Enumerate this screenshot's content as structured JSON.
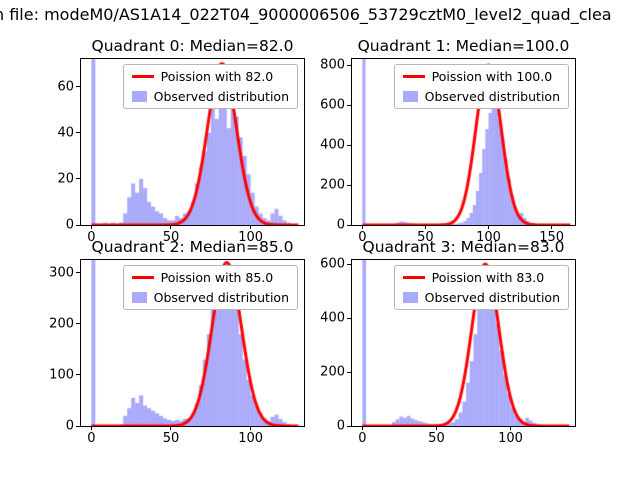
{
  "figure": {
    "title": "n file: modeM0/AS1A14_022T04_9000006506_53729cztM0_level2_quad_clea"
  },
  "colors": {
    "hist": "rgba(100,100,245,0.55)",
    "curve": "#ff0000"
  },
  "chart_data": [
    {
      "type": "bar",
      "title": "Quadrant 0: Median=82.0",
      "legend": [
        "Poission with 82.0",
        "Observed distribution"
      ],
      "xlim": [
        -6.5,
        133.5
      ],
      "ylim": [
        0,
        72
      ],
      "xticks": [
        0,
        50,
        100
      ],
      "yticks": [
        0,
        20,
        40,
        60
      ],
      "bin_start": 0,
      "bin_width": 2.5,
      "counts": [
        72,
        0,
        0,
        1,
        0,
        1,
        0,
        1,
        5,
        12,
        18,
        14,
        20,
        16,
        10,
        8,
        6,
        5,
        3,
        2,
        2,
        4,
        3,
        5,
        6,
        10,
        18,
        25,
        32,
        40,
        52,
        46,
        60,
        55,
        42,
        63,
        47,
        38,
        30,
        22,
        14,
        8,
        5,
        3,
        2,
        5,
        7,
        4,
        2,
        1,
        0,
        0
      ],
      "curve": {
        "label": "Poission with 82.0",
        "mu": 82,
        "amplitude": 70,
        "x_range": [
          0,
          130
        ]
      }
    },
    {
      "type": "bar",
      "title": "Quadrant 1: Median=100.0",
      "legend": [
        "Poission with 100.0",
        "Observed distribution"
      ],
      "xlim": [
        -8.2,
        168.5
      ],
      "ylim": [
        0,
        830
      ],
      "xticks": [
        0,
        50,
        100,
        150
      ],
      "yticks": [
        0,
        200,
        400,
        600,
        800
      ],
      "bin_start": 0,
      "bin_width": 2.5,
      "counts": [
        830,
        0,
        1,
        0,
        1,
        0,
        1,
        2,
        1,
        2,
        8,
        14,
        18,
        15,
        12,
        9,
        7,
        5,
        4,
        3,
        3,
        2,
        2,
        3,
        2,
        3,
        4,
        3,
        5,
        6,
        8,
        12,
        20,
        35,
        60,
        100,
        170,
        260,
        380,
        480,
        560,
        610,
        590,
        530,
        430,
        330,
        230,
        150,
        90,
        55,
        60,
        35,
        20,
        12,
        8,
        5,
        3,
        2,
        1,
        1,
        0,
        1,
        0,
        0,
        0,
        0
      ],
      "curve": {
        "label": "Poission with 100.0",
        "mu": 100,
        "amplitude": 800,
        "x_range": [
          0,
          165
        ]
      }
    },
    {
      "type": "bar",
      "title": "Quadrant 2: Median=85.0",
      "legend": [
        "Poission with 85.0",
        "Observed distribution"
      ],
      "xlim": [
        -6.5,
        133.5
      ],
      "ylim": [
        0,
        325
      ],
      "xticks": [
        0,
        50,
        100
      ],
      "yticks": [
        0,
        100,
        200,
        300
      ],
      "bin_start": 0,
      "bin_width": 2.5,
      "counts": [
        325,
        1,
        2,
        1,
        2,
        1,
        2,
        3,
        20,
        35,
        55,
        45,
        60,
        40,
        35,
        30,
        25,
        20,
        15,
        12,
        10,
        12,
        10,
        14,
        15,
        25,
        45,
        80,
        130,
        180,
        230,
        270,
        300,
        240,
        295,
        285,
        230,
        180,
        130,
        90,
        60,
        40,
        25,
        15,
        10,
        18,
        22,
        14,
        8,
        4,
        2,
        1
      ],
      "curve": {
        "label": "Poission with 85.0",
        "mu": 85,
        "amplitude": 320,
        "x_range": [
          0,
          130
        ]
      }
    },
    {
      "type": "bar",
      "title": "Quadrant 3: Median=83.0",
      "legend": [
        "Poission with 83.0",
        "Observed distribution"
      ],
      "xlim": [
        -7,
        143.5
      ],
      "ylim": [
        0,
        615
      ],
      "xticks": [
        0,
        50,
        100
      ],
      "yticks": [
        0,
        200,
        400,
        600
      ],
      "bin_start": 0,
      "bin_width": 2.5,
      "counts": [
        615,
        1,
        2,
        1,
        2,
        3,
        2,
        3,
        15,
        25,
        35,
        30,
        38,
        28,
        22,
        18,
        14,
        10,
        8,
        6,
        5,
        6,
        8,
        10,
        14,
        25,
        50,
        90,
        160,
        240,
        340,
        430,
        520,
        560,
        530,
        470,
        380,
        280,
        190,
        120,
        70,
        40,
        25,
        15,
        30,
        20,
        12,
        8,
        5,
        3,
        2,
        1,
        1,
        0,
        0,
        0
      ],
      "curve": {
        "label": "Poission with 83.0",
        "mu": 83,
        "amplitude": 600,
        "x_range": [
          0,
          140
        ]
      }
    }
  ]
}
